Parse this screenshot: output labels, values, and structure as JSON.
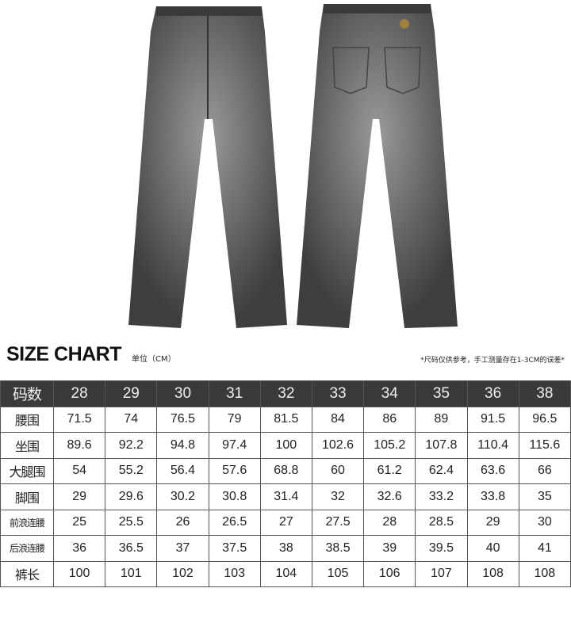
{
  "title": "SIZE CHART",
  "unit": "单位（CM）",
  "note": "*尺码仅供参考，手工测量存在1-3CM的误差*",
  "header": [
    "码数",
    "28",
    "29",
    "30",
    "31",
    "32",
    "33",
    "34",
    "35",
    "36",
    "38"
  ],
  "rows": [
    [
      "腰围",
      "71.5",
      "74",
      "76.5",
      "79",
      "81.5",
      "84",
      "86",
      "89",
      "91.5",
      "96.5"
    ],
    [
      "坐围",
      "89.6",
      "92.2",
      "94.8",
      "97.4",
      "100",
      "102.6",
      "105.2",
      "107.8",
      "110.4",
      "115.6"
    ],
    [
      "大腿围",
      "54",
      "55.2",
      "56.4",
      "57.6",
      "68.8",
      "60",
      "61.2",
      "62.4",
      "63.6",
      "66"
    ],
    [
      "脚围",
      "29",
      "29.6",
      "30.2",
      "30.8",
      "31.4",
      "32",
      "32.6",
      "33.2",
      "33.8",
      "35"
    ],
    [
      "前浪连腰",
      "25",
      "25.5",
      "26",
      "26.5",
      "27",
      "27.5",
      "28",
      "28.5",
      "29",
      "30"
    ],
    [
      "后浪连腰",
      "36",
      "36.5",
      "37",
      "37.5",
      "38",
      "38.5",
      "39",
      "39.5",
      "40",
      "41"
    ],
    [
      "裤长",
      "100",
      "101",
      "102",
      "103",
      "104",
      "105",
      "106",
      "107",
      "108",
      "108"
    ]
  ],
  "colors": {
    "header_bg": "#3a3a3a",
    "denim": "#5a5a5a"
  }
}
